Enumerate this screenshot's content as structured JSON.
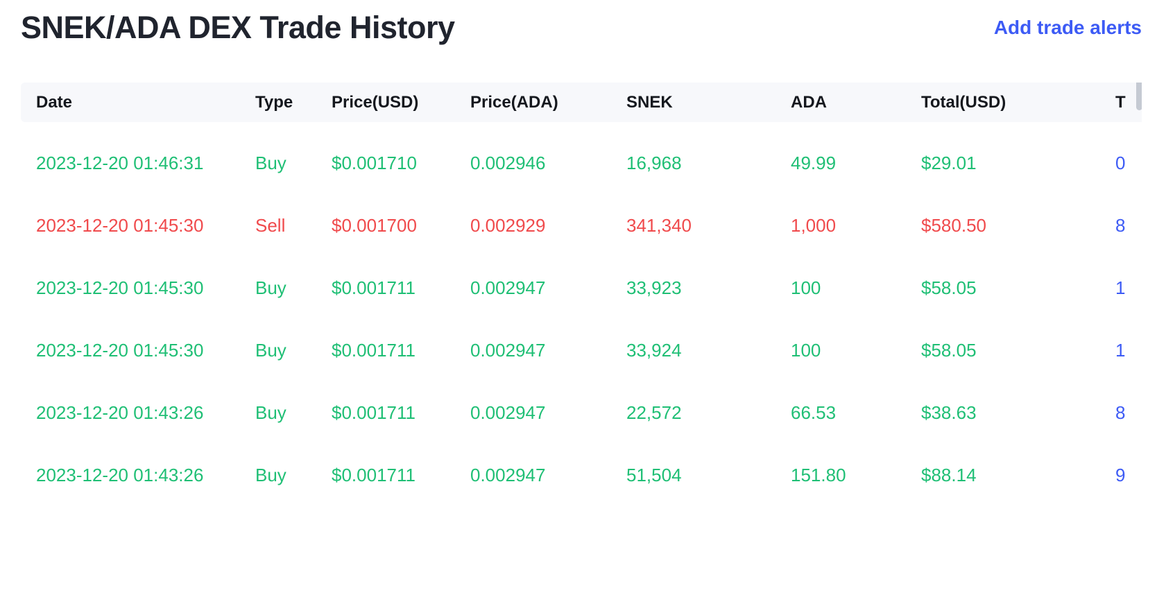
{
  "page": {
    "title": "SNEK/ADA DEX Trade History",
    "action_link": "Add trade alerts"
  },
  "table": {
    "columns": [
      {
        "key": "date",
        "label": "Date"
      },
      {
        "key": "type",
        "label": "Type"
      },
      {
        "key": "price_usd",
        "label": "Price(USD)"
      },
      {
        "key": "price_ada",
        "label": "Price(ADA)"
      },
      {
        "key": "snek",
        "label": "SNEK"
      },
      {
        "key": "ada",
        "label": "ADA"
      },
      {
        "key": "total_usd",
        "label": "Total(USD)"
      },
      {
        "key": "tx",
        "label": "T"
      }
    ],
    "rows": [
      {
        "date": "2023-12-20 01:46:31",
        "type": "Buy",
        "price_usd": "$0.001710",
        "price_ada": "0.002946",
        "snek": "16,968",
        "ada": "49.99",
        "total_usd": "$29.01",
        "tx": "0"
      },
      {
        "date": "2023-12-20 01:45:30",
        "type": "Sell",
        "price_usd": "$0.001700",
        "price_ada": "0.002929",
        "snek": "341,340",
        "ada": "1,000",
        "total_usd": "$580.50",
        "tx": "8"
      },
      {
        "date": "2023-12-20 01:45:30",
        "type": "Buy",
        "price_usd": "$0.001711",
        "price_ada": "0.002947",
        "snek": "33,923",
        "ada": "100",
        "total_usd": "$58.05",
        "tx": "1"
      },
      {
        "date": "2023-12-20 01:45:30",
        "type": "Buy",
        "price_usd": "$0.001711",
        "price_ada": "0.002947",
        "snek": "33,924",
        "ada": "100",
        "total_usd": "$58.05",
        "tx": "1"
      },
      {
        "date": "2023-12-20 01:43:26",
        "type": "Buy",
        "price_usd": "$0.001711",
        "price_ada": "0.002947",
        "snek": "22,572",
        "ada": "66.53",
        "total_usd": "$38.63",
        "tx": "8"
      },
      {
        "date": "2023-12-20 01:43:26",
        "type": "Buy",
        "price_usd": "$0.001711",
        "price_ada": "0.002947",
        "snek": "51,504",
        "ada": "151.80",
        "total_usd": "$88.14",
        "tx": "9"
      }
    ]
  },
  "colors": {
    "buy": "#1FBF75",
    "sell": "#F04A4C",
    "link": "#3D5BF5",
    "title": "#20242E",
    "header_text": "#15181E",
    "header_bg": "#F7F8FB",
    "scrollbar": "#C5CAD3"
  }
}
